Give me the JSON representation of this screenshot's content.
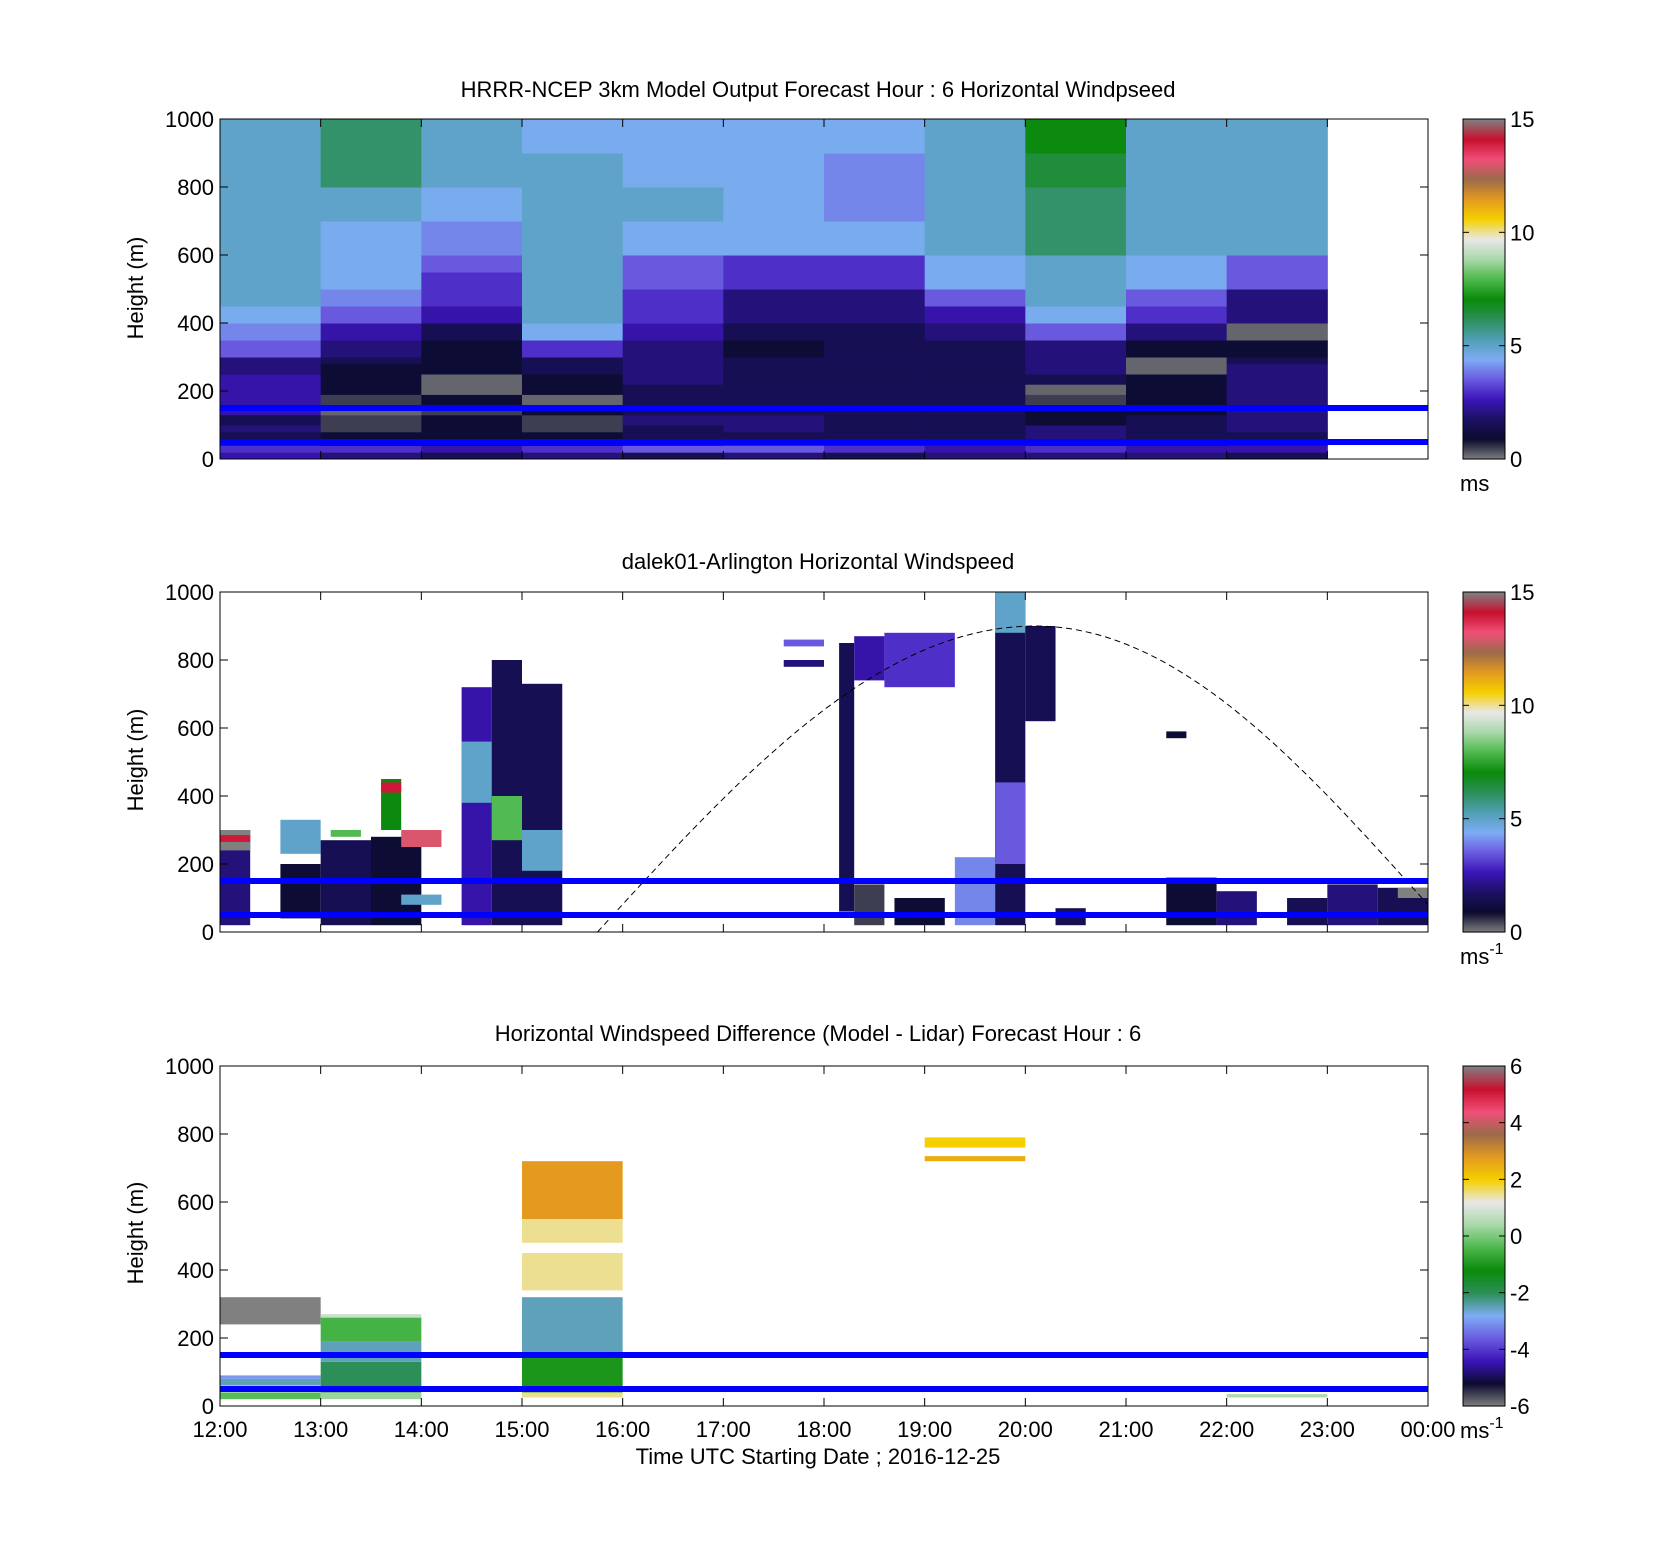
{
  "figure": {
    "xlabel": "Time UTC  Starting Date ; 2016-12-25",
    "x_ticks": [
      "12:00",
      "13:00",
      "14:00",
      "15:00",
      "16:00",
      "17:00",
      "18:00",
      "19:00",
      "20:00",
      "21:00",
      "22:00",
      "23:00",
      "00:00"
    ]
  },
  "colors": {
    "ref_line": "#0000ff",
    "windspeed_stops": [
      "#808080",
      "#0b0b2e",
      "#1c1164",
      "#3b14b8",
      "#6a5be0",
      "#7eacf5",
      "#4f9fb4",
      "#2c8f58",
      "#0a8a0a",
      "#4cb84c",
      "#a8d8a8",
      "#e8e8e8",
      "#f5d000",
      "#e39a1f",
      "#9b6b4a",
      "#f04f78",
      "#c8102e",
      "#808080"
    ],
    "difference_stops": [
      "#808080",
      "#0b0b2e",
      "#3b14b8",
      "#6a5be0",
      "#7eacf5",
      "#2c8f58",
      "#0a8a0a",
      "#4cb84c",
      "#a8d8a8",
      "#e8e8e8",
      "#f5d000",
      "#e39a1f",
      "#9b6b4a",
      "#f04f78",
      "#c8102e",
      "#808080"
    ]
  },
  "chart_data": [
    {
      "type": "heatmap",
      "title": "HRRR-NCEP 3km Model Output   Forecast Hour : 6 Horizontal Windpseed",
      "ylabel": "Height (m)",
      "xlim": [
        "12:00",
        "00:00"
      ],
      "ylim": [
        0,
        1000
      ],
      "y_ticks": [
        "0",
        "200",
        "400",
        "600",
        "800",
        "1000"
      ],
      "colorbar": {
        "ticks": [
          "0",
          "5",
          "10",
          "15"
        ],
        "range": [
          0,
          15
        ],
        "unit": "ms",
        "unit_sup": ""
      },
      "reference_lines_m": [
        50,
        150
      ],
      "column_hours": [
        12,
        13,
        14,
        15,
        16,
        17,
        18,
        19,
        20,
        21,
        22
      ],
      "height_bins_m": [
        [
          0,
          20
        ],
        [
          20,
          40
        ],
        [
          40,
          60
        ],
        [
          60,
          80
        ],
        [
          80,
          100
        ],
        [
          100,
          130
        ],
        [
          130,
          160
        ],
        [
          160,
          190
        ],
        [
          190,
          220
        ],
        [
          220,
          250
        ],
        [
          250,
          280
        ],
        [
          280,
          300
        ],
        [
          300,
          350
        ],
        [
          350,
          400
        ],
        [
          400,
          450
        ],
        [
          450,
          500
        ],
        [
          500,
          550
        ],
        [
          550,
          600
        ],
        [
          600,
          700
        ],
        [
          700,
          800
        ],
        [
          800,
          900
        ],
        [
          900,
          1000
        ]
      ],
      "values": [
        [
          2.5,
          2.0,
          1.5,
          2.0,
          1.5,
          2.0,
          1.5,
          2.0,
          2.0,
          2.0,
          1.5
        ],
        [
          3.0,
          3.0,
          2.5,
          3.0,
          3.5,
          3.5,
          3.0,
          2.5,
          3.0,
          2.5,
          2.5
        ],
        [
          2.0,
          1.0,
          1.0,
          1.0,
          2.0,
          2.5,
          2.0,
          2.0,
          1.5,
          1.5,
          2.0
        ],
        [
          1.5,
          1.0,
          1.0,
          1.0,
          1.5,
          1.5,
          1.5,
          1.5,
          2.0,
          1.5,
          1.5
        ],
        [
          2.0,
          0.5,
          1.0,
          0.5,
          1.5,
          2.0,
          1.5,
          1.5,
          2.0,
          1.5,
          2.0
        ],
        [
          1.5,
          0.5,
          1.0,
          0.5,
          2.0,
          2.0,
          1.5,
          1.5,
          1.0,
          1.5,
          2.0
        ],
        [
          2.5,
          0.2,
          0.5,
          1.0,
          1.5,
          1.5,
          1.5,
          1.5,
          1.0,
          1.0,
          2.0
        ],
        [
          2.5,
          0.5,
          1.0,
          0.2,
          1.5,
          1.5,
          1.5,
          1.5,
          0.5,
          1.0,
          2.0
        ],
        [
          2.5,
          1.0,
          0.2,
          1.0,
          1.5,
          1.5,
          1.5,
          1.5,
          0.2,
          1.0,
          2.0
        ],
        [
          2.5,
          1.0,
          0.2,
          1.0,
          2.0,
          1.5,
          1.5,
          1.5,
          1.5,
          1.0,
          2.0
        ],
        [
          2.0,
          1.0,
          1.0,
          1.5,
          2.0,
          1.5,
          1.5,
          1.5,
          2.0,
          0.2,
          2.0
        ],
        [
          2.0,
          1.5,
          1.0,
          1.5,
          2.0,
          1.5,
          1.5,
          1.5,
          2.0,
          0.2,
          1.5
        ],
        [
          3.5,
          2.0,
          1.0,
          3.0,
          2.0,
          1.0,
          1.5,
          1.5,
          2.0,
          1.0,
          1.0
        ],
        [
          4.0,
          2.5,
          1.5,
          4.5,
          2.5,
          1.5,
          1.5,
          2.0,
          3.5,
          2.0,
          0.2
        ],
        [
          4.5,
          3.5,
          2.5,
          5.0,
          3.0,
          2.0,
          2.0,
          2.5,
          4.5,
          3.0,
          2.0
        ],
        [
          5.0,
          4.0,
          3.0,
          5.0,
          3.0,
          2.0,
          2.0,
          3.5,
          5.0,
          3.5,
          2.0
        ],
        [
          5.0,
          4.5,
          3.0,
          5.0,
          3.5,
          3.0,
          3.0,
          4.5,
          5.0,
          4.5,
          3.5
        ],
        [
          5.0,
          4.5,
          3.5,
          5.0,
          3.5,
          3.0,
          3.0,
          4.5,
          5.0,
          4.5,
          3.5
        ],
        [
          5.0,
          4.5,
          4.0,
          5.0,
          4.5,
          4.5,
          4.5,
          5.0,
          6.0,
          5.0,
          5.0
        ],
        [
          5.0,
          5.0,
          4.5,
          5.0,
          5.0,
          4.5,
          4.0,
          5.0,
          6.0,
          5.0,
          5.0
        ],
        [
          5.0,
          6.0,
          5.0,
          5.0,
          4.5,
          4.5,
          4.0,
          5.0,
          6.5,
          5.0,
          5.0
        ],
        [
          5.0,
          6.0,
          5.0,
          4.5,
          4.5,
          4.5,
          4.5,
          5.0,
          7.0,
          5.0,
          5.0
        ]
      ]
    },
    {
      "type": "heatmap",
      "title": "dalek01-Arlington  Horizontal Windspeed",
      "ylabel": "Height (m)",
      "xlim": [
        "12:00",
        "00:00"
      ],
      "ylim": [
        0,
        1000
      ],
      "y_ticks": [
        "0",
        "200",
        "400",
        "600",
        "800",
        "1000"
      ],
      "colorbar": {
        "ticks": [
          "0",
          "5",
          "10",
          "15"
        ],
        "range": [
          0,
          15
        ],
        "unit": "ms",
        "unit_sup": "-1"
      },
      "reference_lines_m": [
        50,
        150
      ],
      "dashed_curve": {
        "start_hour": 15.75,
        "peak_hour": 20.1,
        "peak_m": 900,
        "end_hour": 24.0,
        "end_m": 80
      },
      "segments": [
        {
          "h0": 12.0,
          "h1": 12.3,
          "z0": 20,
          "z1": 300,
          "v": 2.0
        },
        {
          "h0": 12.0,
          "h1": 12.3,
          "z0": 240,
          "z1": 300,
          "v": 0.0
        },
        {
          "h0": 12.0,
          "h1": 12.3,
          "z0": 265,
          "z1": 285,
          "v": 14.0
        },
        {
          "h0": 12.6,
          "h1": 13.0,
          "z0": 40,
          "z1": 200,
          "v": 1.0
        },
        {
          "h0": 12.6,
          "h1": 13.0,
          "z0": 230,
          "z1": 330,
          "v": 5.0
        },
        {
          "h0": 13.0,
          "h1": 13.5,
          "z0": 20,
          "z1": 270,
          "v": 1.5
        },
        {
          "h0": 13.1,
          "h1": 13.4,
          "z0": 280,
          "z1": 300,
          "v": 8.0
        },
        {
          "h0": 13.5,
          "h1": 14.0,
          "z0": 20,
          "z1": 280,
          "v": 1.0
        },
        {
          "h0": 13.6,
          "h1": 13.8,
          "z0": 300,
          "z1": 450,
          "v": 7.0
        },
        {
          "h0": 13.6,
          "h1": 13.8,
          "z0": 410,
          "z1": 440,
          "v": 14.0
        },
        {
          "h0": 13.8,
          "h1": 14.2,
          "z0": 250,
          "z1": 300,
          "v": 13.0
        },
        {
          "h0": 13.8,
          "h1": 14.2,
          "z0": 80,
          "z1": 110,
          "v": 5.0
        },
        {
          "h0": 14.4,
          "h1": 14.7,
          "z0": 20,
          "z1": 720,
          "v": 2.5
        },
        {
          "h0": 14.4,
          "h1": 14.7,
          "z0": 380,
          "z1": 560,
          "v": 5.0
        },
        {
          "h0": 14.7,
          "h1": 15.0,
          "z0": 20,
          "z1": 800,
          "v": 1.5
        },
        {
          "h0": 14.7,
          "h1": 15.0,
          "z0": 270,
          "z1": 400,
          "v": 8.0
        },
        {
          "h0": 15.0,
          "h1": 15.4,
          "z0": 20,
          "z1": 730,
          "v": 1.5
        },
        {
          "h0": 15.0,
          "h1": 15.4,
          "z0": 180,
          "z1": 300,
          "v": 5.0
        },
        {
          "h0": 17.6,
          "h1": 18.0,
          "z0": 780,
          "z1": 800,
          "v": 2.0
        },
        {
          "h0": 17.6,
          "h1": 18.0,
          "z0": 840,
          "z1": 860,
          "v": 3.5
        },
        {
          "h0": 18.15,
          "h1": 18.3,
          "z0": 60,
          "z1": 850,
          "v": 1.5
        },
        {
          "h0": 18.3,
          "h1": 18.6,
          "z0": 740,
          "z1": 870,
          "v": 2.5
        },
        {
          "h0": 18.3,
          "h1": 18.6,
          "z0": 20,
          "z1": 140,
          "v": 0.5
        },
        {
          "h0": 18.6,
          "h1": 19.3,
          "z0": 720,
          "z1": 880,
          "v": 3.0
        },
        {
          "h0": 18.7,
          "h1": 19.2,
          "z0": 20,
          "z1": 100,
          "v": 1.0
        },
        {
          "h0": 19.3,
          "h1": 19.7,
          "z0": 20,
          "z1": 220,
          "v": 4.0
        },
        {
          "h0": 19.7,
          "h1": 20.0,
          "z0": 20,
          "z1": 1000,
          "v": 1.5
        },
        {
          "h0": 19.7,
          "h1": 20.0,
          "z0": 200,
          "z1": 440,
          "v": 3.5
        },
        {
          "h0": 19.7,
          "h1": 20.0,
          "z0": 880,
          "z1": 1000,
          "v": 5.0
        },
        {
          "h0": 20.0,
          "h1": 20.3,
          "z0": 620,
          "z1": 900,
          "v": 1.5
        },
        {
          "h0": 20.3,
          "h1": 20.6,
          "z0": 20,
          "z1": 70,
          "v": 1.5
        },
        {
          "h0": 21.4,
          "h1": 21.6,
          "z0": 570,
          "z1": 590,
          "v": 1.0
        },
        {
          "h0": 21.4,
          "h1": 21.9,
          "z0": 20,
          "z1": 160,
          "v": 1.0
        },
        {
          "h0": 21.9,
          "h1": 22.3,
          "z0": 20,
          "z1": 120,
          "v": 2.0
        },
        {
          "h0": 22.6,
          "h1": 23.0,
          "z0": 20,
          "z1": 100,
          "v": 1.5
        },
        {
          "h0": 23.0,
          "h1": 23.5,
          "z0": 20,
          "z1": 140,
          "v": 2.0
        },
        {
          "h0": 23.5,
          "h1": 24.0,
          "z0": 20,
          "z1": 130,
          "v": 1.5
        },
        {
          "h0": 23.7,
          "h1": 24.0,
          "z0": 100,
          "z1": 130,
          "v": 0.0
        }
      ]
    },
    {
      "type": "heatmap",
      "title": "Horizontal Windspeed Difference (Model - Lidar) Forecast Hour : 6",
      "ylabel": "Height (m)",
      "xlim": [
        "12:00",
        "00:00"
      ],
      "ylim": [
        0,
        1000
      ],
      "y_ticks": [
        "0",
        "200",
        "400",
        "600",
        "800",
        "1000"
      ],
      "colorbar": {
        "ticks": [
          "-6",
          "-4",
          "-2",
          "0",
          "2",
          "4",
          "6"
        ],
        "range": [
          -6,
          6
        ],
        "unit": "ms",
        "unit_sup": "-1"
      },
      "reference_lines_m": [
        50,
        150
      ],
      "segments": [
        {
          "h0": 12,
          "h1": 13,
          "z0": 20,
          "z1": 40,
          "v": -0.3
        },
        {
          "h0": 12,
          "h1": 13,
          "z0": 60,
          "z1": 80,
          "v": -2.5
        },
        {
          "h0": 12,
          "h1": 13,
          "z0": 80,
          "z1": 90,
          "v": -3.0
        },
        {
          "h0": 12,
          "h1": 13,
          "z0": 240,
          "z1": 320,
          "v": 6.0
        },
        {
          "h0": 13,
          "h1": 14,
          "z0": 20,
          "z1": 40,
          "v": 0.3
        },
        {
          "h0": 13,
          "h1": 14,
          "z0": 40,
          "z1": 130,
          "v": -2.0
        },
        {
          "h0": 13,
          "h1": 14,
          "z0": 130,
          "z1": 190,
          "v": -2.5
        },
        {
          "h0": 13,
          "h1": 14,
          "z0": 190,
          "z1": 260,
          "v": -0.5
        },
        {
          "h0": 13,
          "h1": 14,
          "z0": 260,
          "z1": 270,
          "v": 0.8
        },
        {
          "h0": 15,
          "h1": 16,
          "z0": 25,
          "z1": 40,
          "v": 1.5
        },
        {
          "h0": 15,
          "h1": 16,
          "z0": 40,
          "z1": 150,
          "v": -1.0
        },
        {
          "h0": 15,
          "h1": 16,
          "z0": 150,
          "z1": 320,
          "v": -2.5
        },
        {
          "h0": 15,
          "h1": 16,
          "z0": 340,
          "z1": 450,
          "v": 1.5
        },
        {
          "h0": 15,
          "h1": 16,
          "z0": 480,
          "z1": 550,
          "v": 1.5
        },
        {
          "h0": 15,
          "h1": 16,
          "z0": 550,
          "z1": 720,
          "v": 2.8
        },
        {
          "h0": 19,
          "h1": 20,
          "z0": 720,
          "z1": 735,
          "v": 2.5
        },
        {
          "h0": 19,
          "h1": 20,
          "z0": 760,
          "z1": 790,
          "v": 2.0
        },
        {
          "h0": 22,
          "h1": 23,
          "z0": 25,
          "z1": 35,
          "v": 0.5
        }
      ]
    }
  ]
}
